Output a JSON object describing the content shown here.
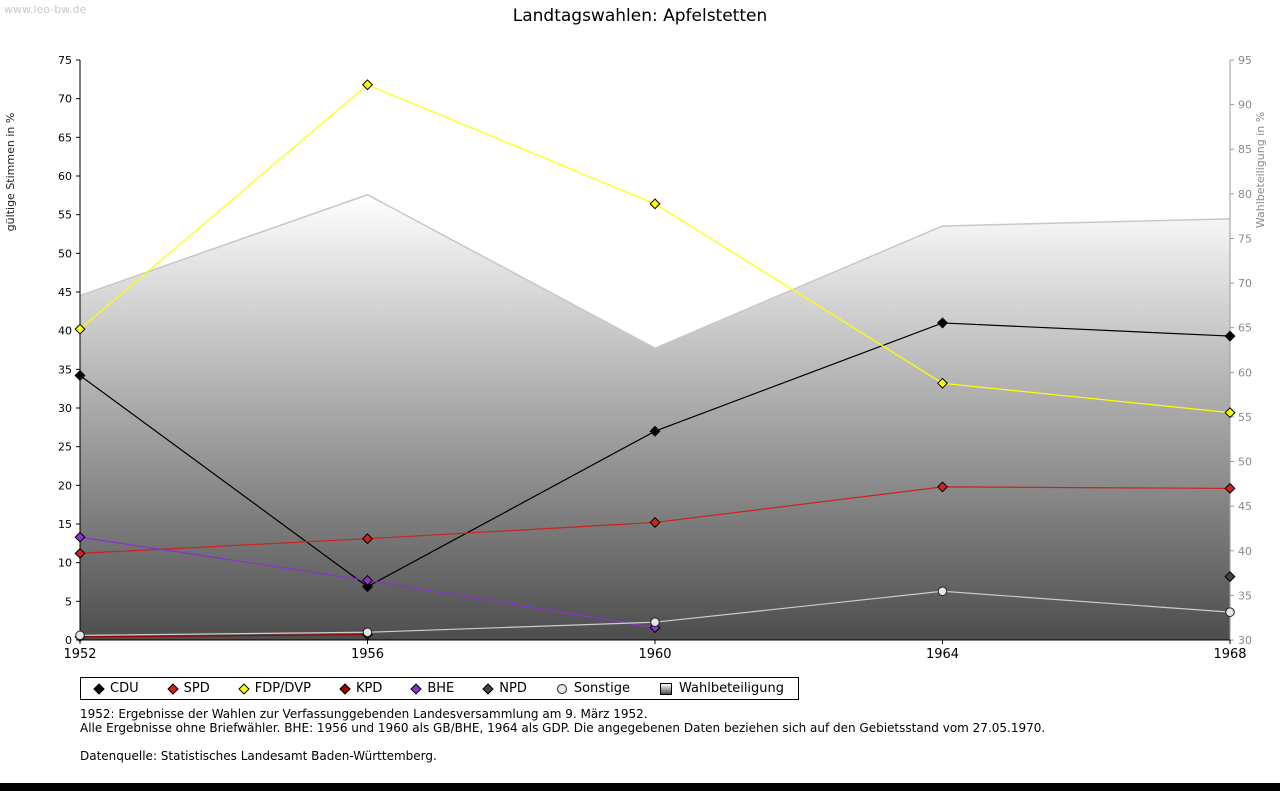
{
  "header": {
    "watermark": "www.leo-bw.de"
  },
  "chart_data": {
    "type": "line",
    "title": "Landtagswahlen: Apfelstetten",
    "x": [
      1952,
      1956,
      1960,
      1964,
      1968
    ],
    "left_axis": {
      "label": "gültige Stimmen in %",
      "min": 0,
      "max": 75,
      "tick_step": 5
    },
    "right_axis": {
      "label": "Wahlbeteiligung in %",
      "min": 30,
      "max": 95,
      "tick_step": 5
    },
    "series": [
      {
        "name": "CDU",
        "color": "#000000",
        "marker": "diamond",
        "points": [
          [
            1952,
            34.2
          ],
          [
            1956,
            6.9
          ],
          [
            1960,
            27.0
          ],
          [
            1964,
            41.0
          ],
          [
            1968,
            39.3
          ]
        ]
      },
      {
        "name": "SPD",
        "color": "#cc2222",
        "marker": "diamond",
        "points": [
          [
            1952,
            11.2
          ],
          [
            1956,
            13.1
          ],
          [
            1960,
            15.2
          ],
          [
            1964,
            19.8
          ],
          [
            1968,
            19.6
          ]
        ]
      },
      {
        "name": "FDP/DVP",
        "color": "#ffff00",
        "marker": "diamond",
        "points": [
          [
            1952,
            40.2
          ],
          [
            1956,
            71.8
          ],
          [
            1960,
            56.4
          ],
          [
            1964,
            33.2
          ],
          [
            1968,
            29.4
          ]
        ]
      },
      {
        "name": "KPD",
        "color": "#990000",
        "marker": "diamond",
        "points": [
          [
            1952,
            0.4
          ],
          [
            1956,
            0.7
          ]
        ]
      },
      {
        "name": "BHE",
        "color": "#8833cc",
        "marker": "diamond",
        "points": [
          [
            1952,
            13.3
          ],
          [
            1956,
            7.7
          ],
          [
            1960,
            1.6
          ]
        ]
      },
      {
        "name": "NPD",
        "color": "#444444",
        "marker": "diamond",
        "points": [
          [
            1968,
            8.2
          ]
        ]
      },
      {
        "name": "Sonstige",
        "color": "#cccccc",
        "marker": "circle",
        "marker_fill": "#e6e6e6",
        "points": [
          [
            1952,
            0.6
          ],
          [
            1956,
            1.0
          ],
          [
            1960,
            2.3
          ],
          [
            1964,
            6.3
          ],
          [
            1968,
            3.6
          ]
        ]
      }
    ],
    "area": {
      "name": "Wahlbeteiligung",
      "axis": "right",
      "fill_top": "#ffffff",
      "fill_bottom": "#4d4d4d",
      "edge_color": "#c8c8c8",
      "points": [
        [
          1952,
          68.6
        ],
        [
          1956,
          79.9
        ],
        [
          1960,
          62.7
        ],
        [
          1964,
          76.4
        ],
        [
          1968,
          77.2
        ]
      ]
    },
    "legend_position": "bottom-left",
    "grid": false
  },
  "footnotes": [
    "1952: Ergebnisse der Wahlen zur Verfassunggebenden Landesversammlung am 9. März 1952.",
    "Alle Ergebnisse ohne Briefwähler. BHE: 1956 und 1960 als GB/BHE, 1964 als GDP. Die angegebenen Daten beziehen sich auf den Gebietsstand vom 27.05.1970.",
    "Datenquelle: Statistisches Landesamt Baden-Württemberg."
  ]
}
